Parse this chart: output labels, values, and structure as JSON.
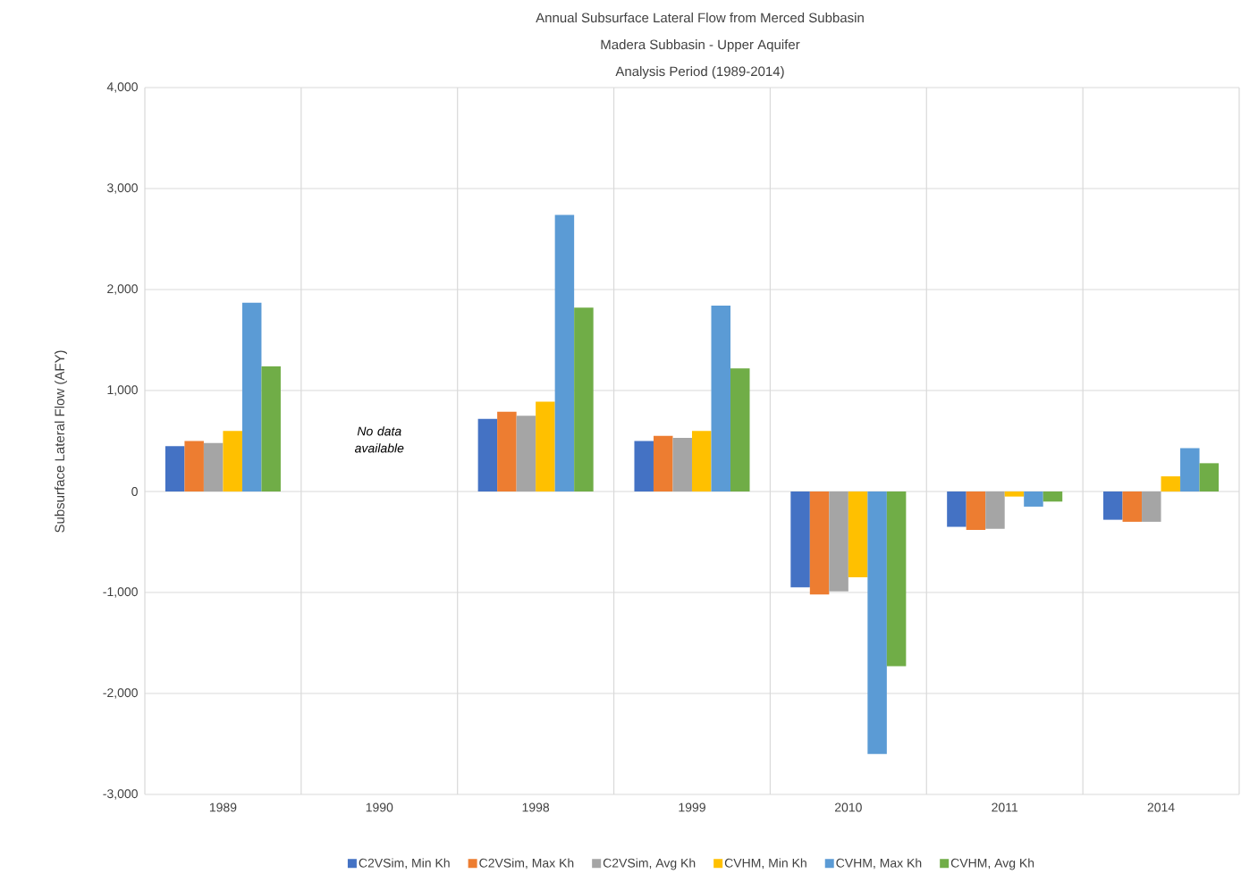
{
  "chart_data": {
    "type": "bar",
    "title": "Annual Subsurface Lateral Flow from Merced Subbasin",
    "subtitle": "Madera Subbasin - Upper Aquifer",
    "ylabel": "Subsurface Lateral Flow (AFY)",
    "annotations": [
      "Analysis Period (1989-2014)",
      "No data available"
    ],
    "categories": [
      "1989",
      "1990",
      "1998",
      "1999",
      "2010",
      "2011",
      "2014"
    ],
    "series": [
      {
        "name": "C2VSim, Min Kh",
        "color": "#4472c4",
        "values": [
          450,
          null,
          720,
          500,
          -950,
          -350,
          -280
        ]
      },
      {
        "name": "C2VSim, Max Kh",
        "color": "#ed7d31",
        "values": [
          500,
          null,
          790,
          550,
          -1020,
          -380,
          -300
        ]
      },
      {
        "name": "C2VSim, Avg Kh",
        "color": "#a5a5a5",
        "values": [
          480,
          null,
          750,
          530,
          -990,
          -370,
          -300
        ]
      },
      {
        "name": "CVHM, Min Kh",
        "color": "#ffc000",
        "values": [
          600,
          null,
          890,
          600,
          -850,
          -50,
          150
        ]
      },
      {
        "name": "CVHM, Max Kh",
        "color": "#5b9bd5",
        "values": [
          1870,
          null,
          2740,
          1840,
          -2600,
          -150,
          430
        ]
      },
      {
        "name": "CVHM, Avg Kh",
        "color": "#70ad47",
        "values": [
          1240,
          null,
          1820,
          1220,
          -1730,
          -100,
          280
        ]
      }
    ],
    "ylim": [
      -3000,
      4000
    ],
    "yticks": [
      {
        "value": -3000,
        "label": "-3,000"
      },
      {
        "value": -2000,
        "label": "-2,000"
      },
      {
        "value": -1000,
        "label": "-1,000"
      },
      0,
      {
        "value": 1000,
        "label": "1,000"
      },
      {
        "value": 2000,
        "label": "2,000"
      },
      {
        "value": 3000,
        "label": "3,000"
      },
      {
        "value": 4000,
        "label": "4,000"
      }
    ],
    "grid": true,
    "legend": "bottom"
  }
}
